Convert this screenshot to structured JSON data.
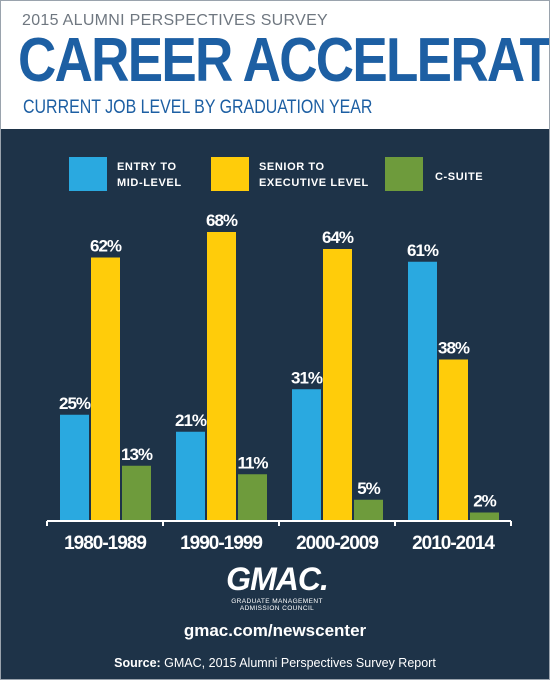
{
  "header": {
    "survey_title": "2015 ALUMNI PERSPECTIVES SURVEY",
    "title": "CAREER ACCELERATION",
    "subtitle": "CURRENT JOB LEVEL BY GRADUATION YEAR"
  },
  "colors": {
    "background": "#1e3348",
    "entry": "#2aa9e0",
    "senior": "#ffcc0a",
    "csuite": "#6e9b3c",
    "title": "#1d5fa3"
  },
  "logo": {
    "text": "GMAC.",
    "subtext": "GRADUATE MANAGEMENT\nADMISSION COUNCIL"
  },
  "footer": {
    "url": "gmac.com/newscenter",
    "source_label": "Source:",
    "source_text": " GMAC, 2015 Alumni Perspectives Survey Report"
  },
  "chart_data": {
    "type": "bar",
    "categories": [
      "1980-1989",
      "1990-1999",
      "2000-2009",
      "2010-2014"
    ],
    "series": [
      {
        "name": "ENTRY TO\nMID-LEVEL",
        "color": "#2aa9e0",
        "values": [
          25,
          21,
          31,
          61
        ],
        "labels": [
          "25%",
          "21%",
          "31%",
          "61%"
        ]
      },
      {
        "name": "SENIOR TO\nEXECUTIVE LEVEL",
        "color": "#ffcc0a",
        "values": [
          62,
          68,
          64,
          38
        ],
        "labels": [
          "62%",
          "68%",
          "64%",
          "38%"
        ]
      },
      {
        "name": "C-SUITE",
        "color": "#6e9b3c",
        "values": [
          13,
          11,
          5,
          2
        ],
        "labels": [
          "13%",
          "11%",
          "5%",
          "2%"
        ]
      }
    ],
    "unit": "%",
    "legend_position": "top",
    "grid": false
  }
}
